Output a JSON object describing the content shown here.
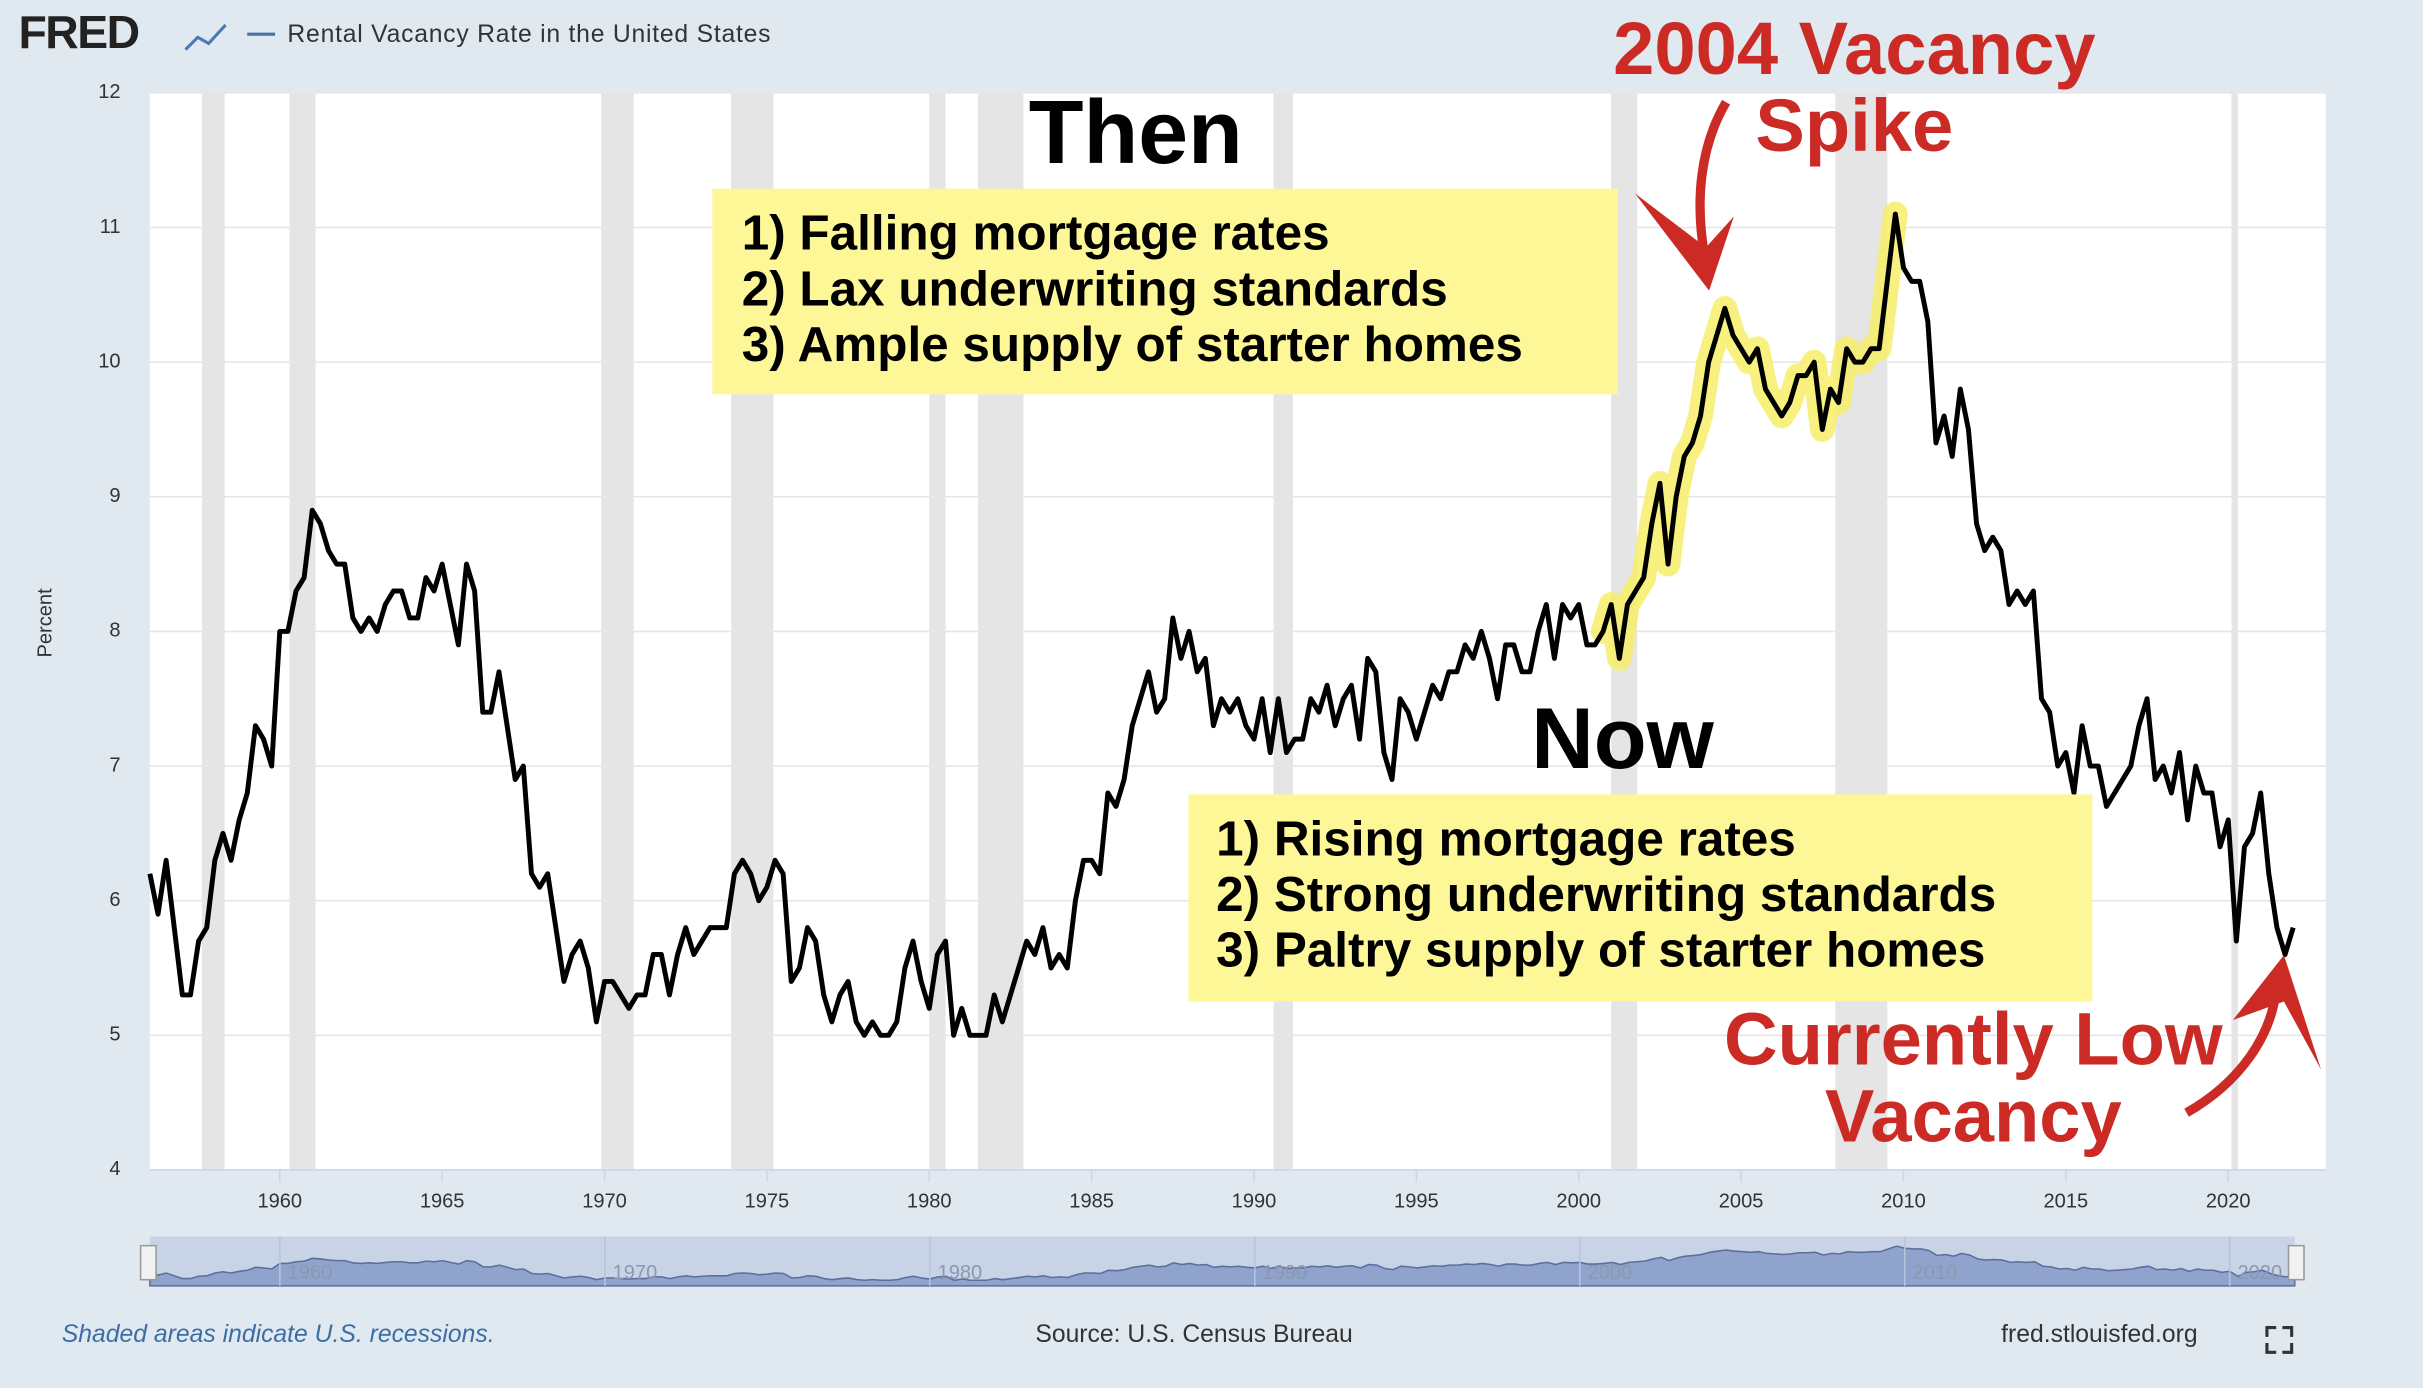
{
  "header": {
    "logo": "FRED",
    "series_title": "Rental Vacancy Rate in the United States"
  },
  "chart_data": {
    "type": "line",
    "y_label": "Percent",
    "xlim": [
      1956,
      2023
    ],
    "ylim": [
      4,
      12
    ],
    "xticks": [
      1960,
      1965,
      1970,
      1975,
      1980,
      1985,
      1990,
      1995,
      2000,
      2005,
      2010,
      2015,
      2020
    ],
    "yticks": [
      4,
      5,
      6,
      7,
      8,
      9,
      10,
      11,
      12
    ],
    "grid": true,
    "recessions": [
      [
        1957.6,
        1958.3
      ],
      [
        1960.3,
        1961.1
      ],
      [
        1969.9,
        1970.9
      ],
      [
        1973.9,
        1975.2
      ],
      [
        1980.0,
        1980.5
      ],
      [
        1981.5,
        1982.9
      ],
      [
        1990.6,
        1991.2
      ],
      [
        2001.0,
        2001.8
      ],
      [
        2007.9,
        2009.5
      ],
      [
        2020.1,
        2020.3
      ]
    ],
    "navigator_xticks": [
      1960,
      1970,
      1980,
      1990,
      2000,
      2010,
      2020
    ],
    "x": [
      1956,
      1956.25,
      1956.5,
      1956.75,
      1957,
      1957.25,
      1957.5,
      1957.75,
      1958,
      1958.25,
      1958.5,
      1958.75,
      1959,
      1959.25,
      1959.5,
      1959.75,
      1960,
      1960.25,
      1960.5,
      1960.75,
      1961,
      1961.25,
      1961.5,
      1961.75,
      1962,
      1962.25,
      1962.5,
      1962.75,
      1963,
      1963.25,
      1963.5,
      1963.75,
      1964,
      1964.25,
      1964.5,
      1964.75,
      1965,
      1965.25,
      1965.5,
      1965.75,
      1966,
      1966.25,
      1966.5,
      1966.75,
      1967,
      1967.25,
      1967.5,
      1967.75,
      1968,
      1968.25,
      1968.5,
      1968.75,
      1969,
      1969.25,
      1969.5,
      1969.75,
      1970,
      1970.25,
      1970.5,
      1970.75,
      1971,
      1971.25,
      1971.5,
      1971.75,
      1972,
      1972.25,
      1972.5,
      1972.75,
      1973,
      1973.25,
      1973.5,
      1973.75,
      1974,
      1974.25,
      1974.5,
      1974.75,
      1975,
      1975.25,
      1975.5,
      1975.75,
      1976,
      1976.25,
      1976.5,
      1976.75,
      1977,
      1977.25,
      1977.5,
      1977.75,
      1978,
      1978.25,
      1978.5,
      1978.75,
      1979,
      1979.25,
      1979.5,
      1979.75,
      1980,
      1980.25,
      1980.5,
      1980.75,
      1981,
      1981.25,
      1981.5,
      1981.75,
      1982,
      1982.25,
      1982.5,
      1982.75,
      1983,
      1983.25,
      1983.5,
      1983.75,
      1984,
      1984.25,
      1984.5,
      1984.75,
      1985,
      1985.25,
      1985.5,
      1985.75,
      1986,
      1986.25,
      1986.5,
      1986.75,
      1987,
      1987.25,
      1987.5,
      1987.75,
      1988,
      1988.25,
      1988.5,
      1988.75,
      1989,
      1989.25,
      1989.5,
      1989.75,
      1990,
      1990.25,
      1990.5,
      1990.75,
      1991,
      1991.25,
      1991.5,
      1991.75,
      1992,
      1992.25,
      1992.5,
      1992.75,
      1993,
      1993.25,
      1993.5,
      1993.75,
      1994,
      1994.25,
      1994.5,
      1994.75,
      1995,
      1995.25,
      1995.5,
      1995.75,
      1996,
      1996.25,
      1996.5,
      1996.75,
      1997,
      1997.25,
      1997.5,
      1997.75,
      1998,
      1998.25,
      1998.5,
      1998.75,
      1999,
      1999.25,
      1999.5,
      1999.75,
      2000,
      2000.25,
      2000.5,
      2000.75,
      2001,
      2001.25,
      2001.5,
      2001.75,
      2002,
      2002.25,
      2002.5,
      2002.75,
      2003,
      2003.25,
      2003.5,
      2003.75,
      2004,
      2004.25,
      2004.5,
      2004.75,
      2005,
      2005.25,
      2005.5,
      2005.75,
      2006,
      2006.25,
      2006.5,
      2006.75,
      2007,
      2007.25,
      2007.5,
      2007.75,
      2008,
      2008.25,
      2008.5,
      2008.75,
      2009,
      2009.25,
      2009.5,
      2009.75,
      2010,
      2010.25,
      2010.5,
      2010.75,
      2011,
      2011.25,
      2011.5,
      2011.75,
      2012,
      2012.25,
      2012.5,
      2012.75,
      2013,
      2013.25,
      2013.5,
      2013.75,
      2014,
      2014.25,
      2014.5,
      2014.75,
      2015,
      2015.25,
      2015.5,
      2015.75,
      2016,
      2016.25,
      2016.5,
      2016.75,
      2017,
      2017.25,
      2017.5,
      2017.75,
      2018,
      2018.25,
      2018.5,
      2018.75,
      2019,
      2019.25,
      2019.5,
      2019.75,
      2020,
      2020.25,
      2020.5,
      2020.75,
      2021,
      2021.25,
      2021.5,
      2021.75,
      2022
    ],
    "series": [
      {
        "name": "Rental Vacancy Rate in the United States",
        "color": "#000000",
        "values": [
          6.2,
          5.9,
          6.3,
          5.8,
          5.3,
          5.3,
          5.7,
          5.8,
          6.3,
          6.5,
          6.3,
          6.6,
          6.8,
          7.3,
          7.2,
          7.0,
          8.0,
          8.0,
          8.3,
          8.4,
          8.9,
          8.8,
          8.6,
          8.5,
          8.5,
          8.1,
          8.0,
          8.1,
          8.0,
          8.2,
          8.3,
          8.3,
          8.1,
          8.1,
          8.4,
          8.3,
          8.5,
          8.2,
          7.9,
          8.5,
          8.3,
          7.4,
          7.4,
          7.7,
          7.3,
          6.9,
          7.0,
          6.2,
          6.1,
          6.2,
          5.8,
          5.4,
          5.6,
          5.7,
          5.5,
          5.1,
          5.4,
          5.4,
          5.3,
          5.2,
          5.3,
          5.3,
          5.6,
          5.6,
          5.3,
          5.6,
          5.8,
          5.6,
          5.7,
          5.8,
          5.8,
          5.8,
          6.2,
          6.3,
          6.2,
          6.0,
          6.1,
          6.3,
          6.2,
          5.4,
          5.5,
          5.8,
          5.7,
          5.3,
          5.1,
          5.3,
          5.4,
          5.1,
          5.0,
          5.1,
          5.0,
          5.0,
          5.1,
          5.5,
          5.7,
          5.4,
          5.2,
          5.6,
          5.7,
          5.0,
          5.2,
          5.0,
          5.0,
          5.0,
          5.3,
          5.1,
          5.3,
          5.5,
          5.7,
          5.6,
          5.8,
          5.5,
          5.6,
          5.5,
          6.0,
          6.3,
          6.3,
          6.2,
          6.8,
          6.7,
          6.9,
          7.3,
          7.5,
          7.7,
          7.4,
          7.5,
          8.1,
          7.8,
          8.0,
          7.7,
          7.8,
          7.3,
          7.5,
          7.4,
          7.5,
          7.3,
          7.2,
          7.5,
          7.1,
          7.5,
          7.1,
          7.2,
          7.2,
          7.5,
          7.4,
          7.6,
          7.3,
          7.5,
          7.6,
          7.2,
          7.8,
          7.7,
          7.1,
          6.9,
          7.5,
          7.4,
          7.2,
          7.4,
          7.6,
          7.5,
          7.7,
          7.7,
          7.9,
          7.8,
          8.0,
          7.8,
          7.5,
          7.9,
          7.9,
          7.7,
          7.7,
          8.0,
          8.2,
          7.8,
          8.2,
          8.1,
          8.2,
          7.9,
          7.9,
          8.0,
          8.2,
          7.8,
          8.2,
          8.3,
          8.4,
          8.8,
          9.1,
          8.5,
          9.0,
          9.3,
          9.4,
          9.6,
          10.0,
          10.2,
          10.4,
          10.2,
          10.1,
          10.0,
          10.1,
          9.8,
          9.7,
          9.6,
          9.7,
          9.9,
          9.9,
          10.0,
          9.5,
          9.8,
          9.7,
          10.1,
          10.0,
          10.0,
          10.1,
          10.1,
          10.6,
          11.1,
          10.7,
          10.6,
          10.6,
          10.3,
          9.4,
          9.6,
          9.3,
          9.8,
          9.5,
          8.8,
          8.6,
          8.7,
          8.6,
          8.2,
          8.3,
          8.2,
          8.3,
          7.5,
          7.4,
          7.0,
          7.1,
          6.8,
          7.3,
          7.0,
          7.0,
          6.7,
          6.8,
          6.9,
          7.0,
          7.3,
          7.5,
          6.9,
          7.0,
          6.8,
          7.1,
          6.6,
          7.0,
          6.8,
          6.8,
          6.4,
          6.6,
          5.7,
          6.4,
          6.5,
          6.8,
          6.2,
          5.8,
          5.6,
          5.8
        ]
      }
    ]
  },
  "annotations": {
    "then": {
      "title": "Then",
      "lines": [
        "1) Falling mortgage rates",
        "2) Lax underwriting standards",
        "3) Ample supply of starter homes"
      ]
    },
    "now": {
      "title": "Now",
      "lines": [
        "1) Rising mortgage rates",
        "2) Strong underwriting standards",
        "3) Paltry supply of starter homes"
      ]
    },
    "spike": [
      "2004 Vacancy",
      "Spike"
    ],
    "current": [
      "Currently Low",
      "Vacancy"
    ]
  },
  "footer": {
    "note": "Shaded areas indicate U.S. recessions.",
    "source": "Source: U.S. Census Bureau",
    "site": "fred.stlouisfed.org"
  }
}
